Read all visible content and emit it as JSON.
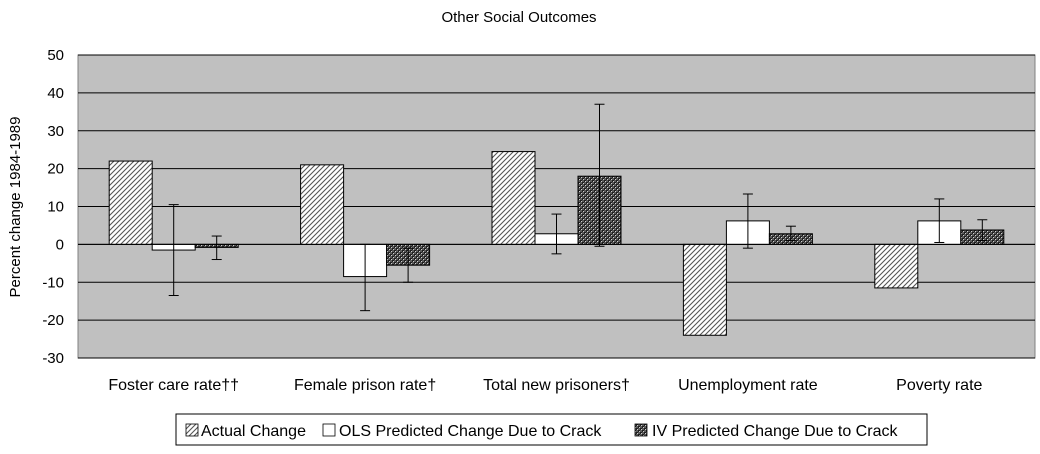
{
  "chart_data": {
    "type": "bar",
    "title": "Other Social Outcomes",
    "ylabel": "Percent change 1984-1989",
    "xlabel": "",
    "ylim": [
      -30,
      50
    ],
    "yticks": [
      50,
      40,
      30,
      20,
      10,
      0,
      -10,
      -20,
      -30
    ],
    "grid": true,
    "legend_position": "bottom",
    "plot_background": "#c0c0c0",
    "categories": [
      "Foster care rate††",
      "Female prison rate†",
      "Total new prisoners†",
      "Unemployment rate",
      "Poverty rate"
    ],
    "series": [
      {
        "name": "Actual Change",
        "pattern": "diagonal-hatch",
        "values": [
          22,
          21,
          24.5,
          -24,
          -11.5
        ]
      },
      {
        "name": "OLS Predicted Change Due to Crack",
        "pattern": "white",
        "values": [
          -1.5,
          -8.5,
          2.8,
          6.2,
          6.2
        ],
        "error_low": [
          -13.5,
          -17.5,
          -2.5,
          -1,
          0.5
        ],
        "error_high": [
          10.5,
          0,
          8,
          13.3,
          12
        ]
      },
      {
        "name": "IV Predicted Change Due to Crack",
        "pattern": "crosshatch-dark",
        "values": [
          -0.8,
          -5.5,
          18,
          2.8,
          3.8
        ],
        "error_low": [
          -4,
          -10,
          -0.5,
          1,
          1
        ],
        "error_high": [
          2.2,
          -1,
          37,
          4.8,
          6.5
        ]
      }
    ]
  }
}
